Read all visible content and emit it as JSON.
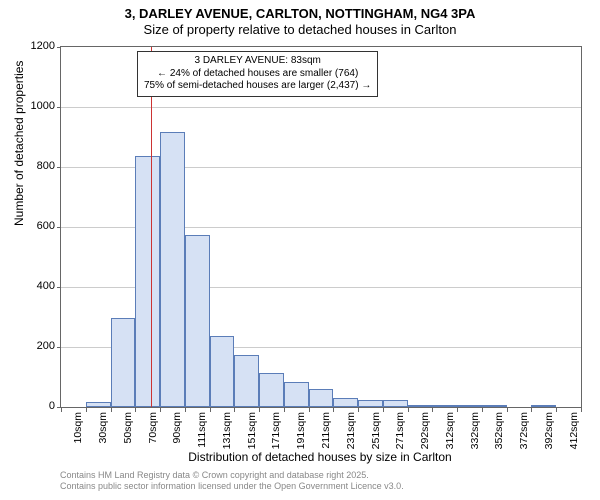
{
  "chart": {
    "type": "histogram",
    "title_line1": "3, DARLEY AVENUE, CARLTON, NOTTINGHAM, NG4 3PA",
    "title_line2": "Size of property relative to detached houses in Carlton",
    "ylabel": "Number of detached properties",
    "xlabel": "Distribution of detached houses by size in Carlton",
    "ylim": [
      0,
      1200
    ],
    "ytick_step": 200,
    "yticks": [
      0,
      200,
      400,
      600,
      800,
      1000,
      1200
    ],
    "x_categories": [
      "10sqm",
      "30sqm",
      "50sqm",
      "70sqm",
      "90sqm",
      "111sqm",
      "131sqm",
      "151sqm",
      "171sqm",
      "191sqm",
      "211sqm",
      "231sqm",
      "251sqm",
      "271sqm",
      "292sqm",
      "312sqm",
      "332sqm",
      "352sqm",
      "372sqm",
      "392sqm",
      "412sqm"
    ],
    "values": [
      0,
      18,
      298,
      838,
      916,
      575,
      238,
      172,
      115,
      85,
      60,
      30,
      22,
      22,
      8,
      8,
      4,
      2,
      0,
      2,
      0
    ],
    "bar_fill": "#d6e1f4",
    "bar_stroke": "#5b7db8",
    "background_color": "#ffffff",
    "grid_color": "#cccccc",
    "axis_color": "#666666",
    "highlight": {
      "value_sqm": 83,
      "line_color": "#cc3333",
      "box_lines": [
        "3 DARLEY AVENUE: 83sqm",
        "← 24% of detached houses are smaller (764)",
        "75% of semi-detached houses are larger (2,437) →"
      ]
    },
    "title_fontsize": 13,
    "label_fontsize": 12,
    "tick_fontsize": 11,
    "footer_fontsize": 9,
    "footer_color": "#888888"
  },
  "footer": {
    "line1": "Contains HM Land Registry data © Crown copyright and database right 2025.",
    "line2": "Contains public sector information licensed under the Open Government Licence v3.0."
  }
}
